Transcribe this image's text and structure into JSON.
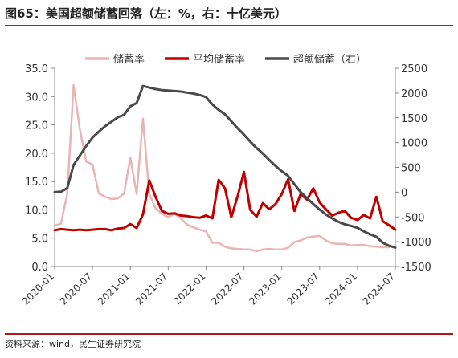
{
  "header": {
    "title": "图65：美国超额储蓄回落（左：%，右：十亿美元）"
  },
  "footer": {
    "source": "资料来源：wind，民生证券研究院"
  },
  "colors": {
    "saving_rate": "#e8b4b4",
    "avg_saving_rate": "#c00000",
    "excess_savings": "#4a4a4a",
    "accent_rule": "#b01818"
  },
  "chart_data": {
    "type": "line",
    "title": "图65：美国超额储蓄回落（左：%，右：十亿美元）",
    "y_left": {
      "label": "",
      "ylim": [
        0,
        35
      ],
      "ticks": [
        "0.0",
        "5.0",
        "10.0",
        "15.0",
        "20.0",
        "25.0",
        "30.0",
        "35.0"
      ]
    },
    "y_right": {
      "label": "",
      "ylim": [
        -1500,
        2500
      ],
      "ticks": [
        "-1500",
        "-1000",
        "-500",
        "0",
        "500",
        "1000",
        "1500",
        "2000",
        "2500"
      ]
    },
    "x_ticks": [
      "2020-01",
      "2020-07",
      "2021-01",
      "2021-07",
      "2022-01",
      "2022-07",
      "2023-01",
      "2023-07",
      "2024-01",
      "2024-07"
    ],
    "legend_position": "top",
    "grid": false,
    "series": [
      {
        "name": "储蓄率",
        "axis": "left",
        "color": "#e8b4b4",
        "x": [
          "2020-01",
          "2020-02",
          "2020-03",
          "2020-04",
          "2020-05",
          "2020-06",
          "2020-07",
          "2020-08",
          "2020-09",
          "2020-10",
          "2020-11",
          "2020-12",
          "2021-01",
          "2021-02",
          "2021-03",
          "2021-04",
          "2021-05",
          "2021-06",
          "2021-07",
          "2021-08",
          "2021-09",
          "2021-10",
          "2021-11",
          "2021-12",
          "2022-01",
          "2022-02",
          "2022-03",
          "2022-04",
          "2022-05",
          "2022-06",
          "2022-07",
          "2022-08",
          "2022-09",
          "2022-10",
          "2022-11",
          "2022-12",
          "2023-01",
          "2023-02",
          "2023-03",
          "2023-04",
          "2023-05",
          "2023-06",
          "2023-07",
          "2023-08",
          "2023-09",
          "2023-10",
          "2023-11",
          "2023-12",
          "2024-01",
          "2024-02",
          "2024-03",
          "2024-04",
          "2024-05",
          "2024-06"
        ],
        "values": [
          7.2,
          7.6,
          12.8,
          32.0,
          24.2,
          18.5,
          18.0,
          12.9,
          12.3,
          11.9,
          12.0,
          12.9,
          19.2,
          12.8,
          26.1,
          12.8,
          10.3,
          9.3,
          8.7,
          9.3,
          8.5,
          7.4,
          6.9,
          6.5,
          6.2,
          4.2,
          4.2,
          3.5,
          3.2,
          3.1,
          3.0,
          3.0,
          2.7,
          3.0,
          3.1,
          3.0,
          3.0,
          3.3,
          4.3,
          4.6,
          5.1,
          5.3,
          5.4,
          4.6,
          4.1,
          4.0,
          4.0,
          3.7,
          3.8,
          3.8,
          3.6,
          3.5,
          3.4,
          3.4
        ]
      },
      {
        "name": "平均储蓄率",
        "axis": "left",
        "color": "#c00000",
        "x": [
          "2020-01",
          "2020-02",
          "2020-03",
          "2020-04",
          "2020-05",
          "2020-06",
          "2020-07",
          "2020-08",
          "2020-09",
          "2020-10",
          "2020-11",
          "2020-12",
          "2021-01",
          "2021-02",
          "2021-03",
          "2021-04",
          "2021-05",
          "2021-06",
          "2021-07",
          "2021-08",
          "2021-09",
          "2021-10",
          "2021-11",
          "2021-12",
          "2022-01",
          "2022-02",
          "2022-03",
          "2022-04",
          "2022-05",
          "2022-06",
          "2022-07",
          "2022-08",
          "2022-09",
          "2022-10",
          "2022-11",
          "2022-12",
          "2023-01",
          "2023-02",
          "2023-03",
          "2023-04",
          "2023-05",
          "2023-06",
          "2023-07",
          "2023-08",
          "2023-09",
          "2023-10",
          "2023-11",
          "2023-12",
          "2024-01",
          "2024-02",
          "2024-03",
          "2024-04",
          "2024-05",
          "2024-06",
          "2024-07"
        ],
        "values": [
          6.4,
          6.6,
          6.5,
          6.4,
          6.5,
          6.4,
          6.5,
          6.6,
          6.6,
          6.4,
          6.7,
          6.8,
          7.5,
          6.8,
          9.2,
          15.2,
          12.3,
          9.8,
          9.3,
          9.4,
          9.0,
          8.9,
          8.7,
          8.6,
          9.0,
          8.5,
          15.3,
          13.8,
          8.7,
          12.4,
          16.7,
          10.0,
          8.8,
          11.2,
          10.1,
          11.0,
          12.8,
          15.4,
          9.8,
          12.8,
          11.8,
          13.8,
          11.3,
          10.1,
          9.0,
          9.5,
          9.8,
          8.6,
          8.2,
          9.1,
          8.5,
          12.3,
          8.0,
          7.3,
          6.5
        ]
      },
      {
        "name": "超额储蓄（右）",
        "axis": "right",
        "color": "#4a4a4a",
        "x": [
          "2020-01",
          "2020-02",
          "2020-03",
          "2020-04",
          "2020-05",
          "2020-06",
          "2020-07",
          "2020-08",
          "2020-09",
          "2020-10",
          "2020-11",
          "2020-12",
          "2021-01",
          "2021-02",
          "2021-03",
          "2021-04",
          "2021-05",
          "2021-06",
          "2021-07",
          "2021-08",
          "2021-09",
          "2021-10",
          "2021-11",
          "2021-12",
          "2022-01",
          "2022-02",
          "2022-03",
          "2022-04",
          "2022-05",
          "2022-06",
          "2022-07",
          "2022-08",
          "2022-09",
          "2022-10",
          "2022-11",
          "2022-12",
          "2023-01",
          "2023-02",
          "2023-03",
          "2023-04",
          "2023-05",
          "2023-06",
          "2023-07",
          "2023-08",
          "2023-09",
          "2023-10",
          "2023-11",
          "2023-12",
          "2024-01",
          "2024-02",
          "2024-03",
          "2024-04",
          "2024-05",
          "2024-06",
          "2024-07"
        ],
        "values": [
          0,
          10,
          80,
          550,
          740,
          930,
          1100,
          1220,
          1330,
          1420,
          1510,
          1560,
          1730,
          1800,
          2140,
          2110,
          2080,
          2060,
          2050,
          2040,
          2030,
          2010,
          1990,
          1960,
          1920,
          1770,
          1660,
          1570,
          1430,
          1290,
          1160,
          1020,
          890,
          780,
          650,
          530,
          420,
          330,
          160,
          0,
          -120,
          -240,
          -350,
          -450,
          -530,
          -600,
          -650,
          -680,
          -720,
          -790,
          -850,
          -900,
          -1020,
          -1080,
          -1120
        ]
      }
    ]
  }
}
